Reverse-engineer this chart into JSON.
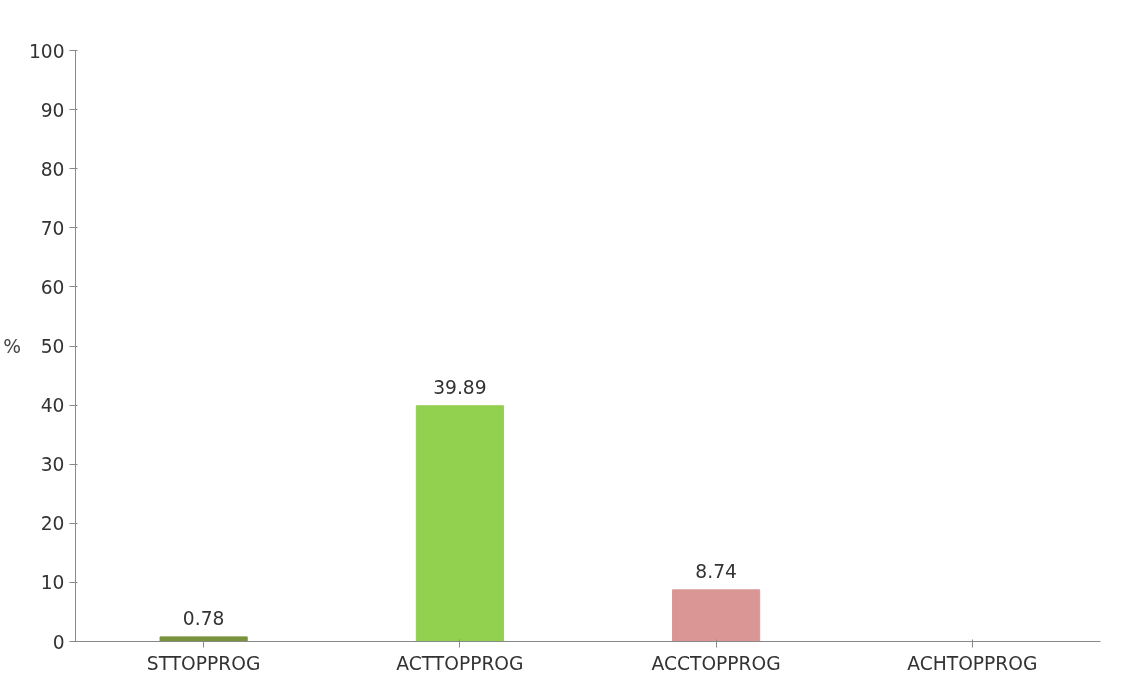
{
  "chart_data": {
    "type": "bar",
    "ylabel": "%",
    "categories": [
      "STTOPPROG",
      "ACTTOPPROG",
      "ACCTOPPROG",
      "ACHTOPPROG"
    ],
    "values": [
      0.78,
      39.89,
      8.74,
      null
    ],
    "colors": [
      "#77933c",
      "#92d050",
      "#d99694",
      "#4f81bd"
    ],
    "ylim": [
      0,
      100
    ],
    "yticks": [
      0,
      10,
      20,
      30,
      40,
      50,
      60,
      70,
      80,
      90,
      100
    ],
    "data_labels": true,
    "grid": false
  }
}
